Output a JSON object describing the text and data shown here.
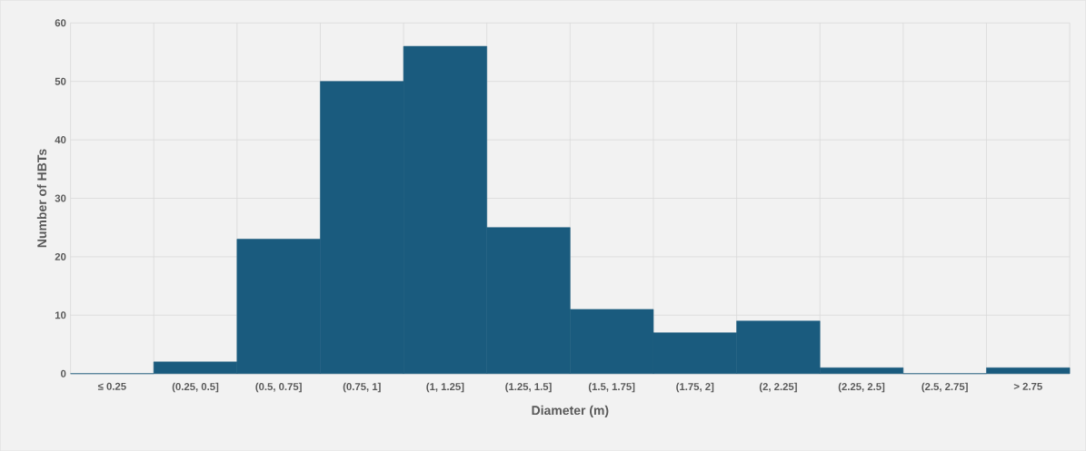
{
  "chart_data": {
    "type": "bar",
    "xlabel": "Diameter (m)",
    "ylabel": "Number of HBTs",
    "categories": [
      "≤ 0.25",
      "(0.25, 0.5]",
      "(0.5, 0.75]",
      "(0.75, 1]",
      "(1, 1.25]",
      "(1.25, 1.5]",
      "(1.5, 1.75]",
      "(1.75, 2]",
      "(2, 2.25]",
      "(2.25, 2.5]",
      "(2.5, 2.75]",
      "> 2.75"
    ],
    "values": [
      0,
      2,
      23,
      50,
      56,
      25,
      11,
      7,
      9,
      1,
      0,
      1
    ],
    "color": "#1a5b7e",
    "ylim": [
      0,
      60
    ],
    "yticks": [
      0,
      10,
      20,
      30,
      40,
      50,
      60
    ],
    "grid": true
  }
}
